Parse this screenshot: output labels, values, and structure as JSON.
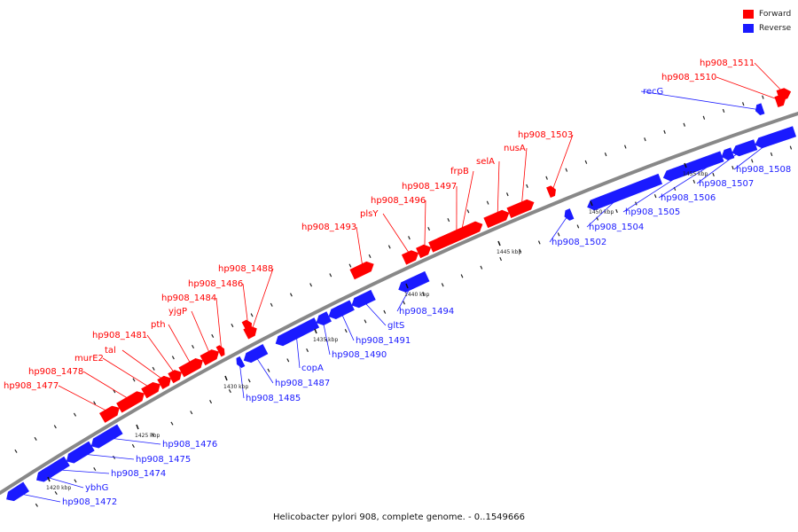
{
  "colors": {
    "forward": "#ff0000",
    "reverse": "#1a1aff",
    "backbone": "#888888"
  },
  "legend": [
    {
      "label": "Forward",
      "color": "#ff0000"
    },
    {
      "label": "Reverse",
      "color": "#1a1aff"
    }
  ],
  "caption": "Helicobacter pylori 908, complete genome. - 0..1549666",
  "scale_labels": [
    "1420 kbp",
    "1425 kbp",
    "1430 kbp",
    "1435 kbp",
    "1440 kbp",
    "1445 kbp",
    "1450 kbp",
    "1455 kbp"
  ],
  "genes": [
    {
      "name": "hp908_1472",
      "strand": "reverse"
    },
    {
      "name": "ybhG",
      "strand": "reverse"
    },
    {
      "name": "hp908_1474",
      "strand": "reverse"
    },
    {
      "name": "hp908_1475",
      "strand": "reverse"
    },
    {
      "name": "hp908_1476",
      "strand": "reverse"
    },
    {
      "name": "hp908_1477",
      "strand": "forward"
    },
    {
      "name": "hp908_1478",
      "strand": "forward"
    },
    {
      "name": "murE2",
      "strand": "forward"
    },
    {
      "name": "tal",
      "strand": "forward"
    },
    {
      "name": "hp908_1481",
      "strand": "forward"
    },
    {
      "name": "pth",
      "strand": "forward"
    },
    {
      "name": "yjgP",
      "strand": "forward"
    },
    {
      "name": "hp908_1484",
      "strand": "forward"
    },
    {
      "name": "hp908_1485",
      "strand": "reverse"
    },
    {
      "name": "hp908_1486",
      "strand": "forward"
    },
    {
      "name": "hp908_1487",
      "strand": "reverse"
    },
    {
      "name": "hp908_1488",
      "strand": "forward"
    },
    {
      "name": "copA",
      "strand": "reverse"
    },
    {
      "name": "hp908_1490",
      "strand": "reverse"
    },
    {
      "name": "hp908_1491",
      "strand": "reverse"
    },
    {
      "name": "gltS",
      "strand": "reverse"
    },
    {
      "name": "hp908_1493",
      "strand": "forward"
    },
    {
      "name": "hp908_1494",
      "strand": "reverse"
    },
    {
      "name": "plsY",
      "strand": "forward"
    },
    {
      "name": "hp908_1496",
      "strand": "forward"
    },
    {
      "name": "hp908_1497",
      "strand": "forward"
    },
    {
      "name": "frpB",
      "strand": "forward"
    },
    {
      "name": "selA",
      "strand": "forward"
    },
    {
      "name": "nusA",
      "strand": "forward"
    },
    {
      "name": "hp908_1502",
      "strand": "reverse"
    },
    {
      "name": "hp908_1503",
      "strand": "forward"
    },
    {
      "name": "hp908_1504",
      "strand": "reverse"
    },
    {
      "name": "hp908_1505",
      "strand": "reverse"
    },
    {
      "name": "hp908_1506",
      "strand": "reverse"
    },
    {
      "name": "hp908_1507",
      "strand": "reverse"
    },
    {
      "name": "hp908_1508",
      "strand": "reverse"
    },
    {
      "name": "recG",
      "strand": "reverse"
    },
    {
      "name": "hp908_1510",
      "strand": "forward"
    },
    {
      "name": "hp908_1511",
      "strand": "forward"
    }
  ]
}
